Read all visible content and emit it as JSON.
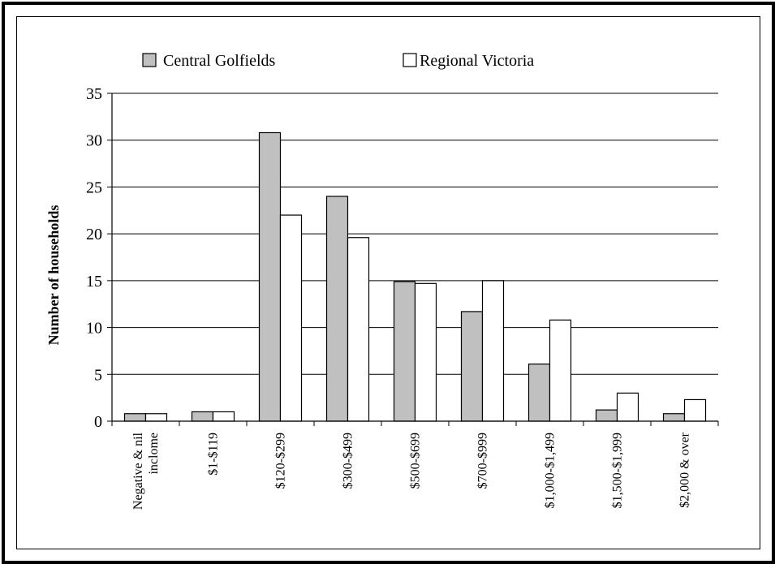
{
  "chart_data": {
    "type": "bar",
    "title": "",
    "xlabel": "",
    "ylabel": "Number of households",
    "ylim": [
      0,
      35
    ],
    "yticks": [
      0,
      5,
      10,
      15,
      20,
      25,
      30,
      35
    ],
    "grid": "horizontal",
    "legend_position": "top",
    "categories": [
      [
        "Negative & nil",
        "inclome"
      ],
      [
        "$1-$119"
      ],
      [
        "$120-$299"
      ],
      [
        "$300-$499"
      ],
      [
        "$500-$699"
      ],
      [
        "$700-$999"
      ],
      [
        "$1,000-$1,499"
      ],
      [
        "$1,500-$1,999"
      ],
      [
        "$2,000 & over"
      ]
    ],
    "series": [
      {
        "name": "Central Golfields",
        "color": "#c0c0c0",
        "values": [
          0.8,
          1.0,
          30.8,
          24.0,
          14.9,
          11.7,
          6.1,
          1.2,
          0.8
        ]
      },
      {
        "name": "Regional Victoria",
        "color": "#ffffff",
        "values": [
          0.8,
          1.0,
          22.0,
          19.6,
          14.7,
          15.0,
          10.8,
          3.0,
          2.3
        ]
      }
    ]
  }
}
